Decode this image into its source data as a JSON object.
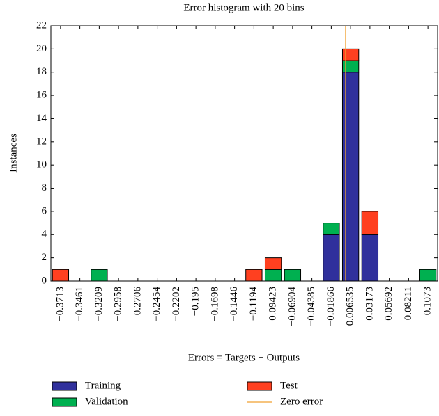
{
  "chart_data": {
    "type": "bar",
    "stacked": true,
    "title": "Error histogram with 20 bins",
    "xlabel": "Errors = Targets − Outputs",
    "ylabel": "Instances",
    "categories": [
      "−0.3713",
      "−0.3461",
      "−0.3209",
      "−0.2958",
      "−0.2706",
      "−0.2454",
      "−0.2202",
      "−0.195",
      "−0.1698",
      "−0.1446",
      "−0.1194",
      "−0.09423",
      "−0.06904",
      "−0.04385",
      "−0.01866",
      "0.006535",
      "0.03173",
      "0.05692",
      "0.08211",
      "0.1073"
    ],
    "series": [
      {
        "name": "Training",
        "color": "#30309c",
        "values": [
          0,
          0,
          0,
          0,
          0,
          0,
          0,
          0,
          0,
          0,
          0,
          0,
          0,
          0,
          4,
          18,
          4,
          0,
          0,
          0
        ]
      },
      {
        "name": "Validation",
        "color": "#00b050",
        "values": [
          0,
          0,
          1,
          0,
          0,
          0,
          0,
          0,
          0,
          0,
          0,
          1,
          1,
          0,
          1,
          1,
          0,
          0,
          0,
          1
        ]
      },
      {
        "name": "Test",
        "color": "#ff4020",
        "values": [
          1,
          0,
          0,
          0,
          0,
          0,
          0,
          0,
          0,
          0,
          1,
          1,
          0,
          0,
          0,
          1,
          2,
          0,
          0,
          0
        ]
      },
      {
        "name": "Zero error",
        "color": "#f0a030",
        "x": 0
      }
    ],
    "ylim": [
      0,
      22
    ],
    "yticks": [
      0,
      2,
      4,
      6,
      8,
      10,
      12,
      14,
      16,
      18,
      20,
      22
    ]
  }
}
